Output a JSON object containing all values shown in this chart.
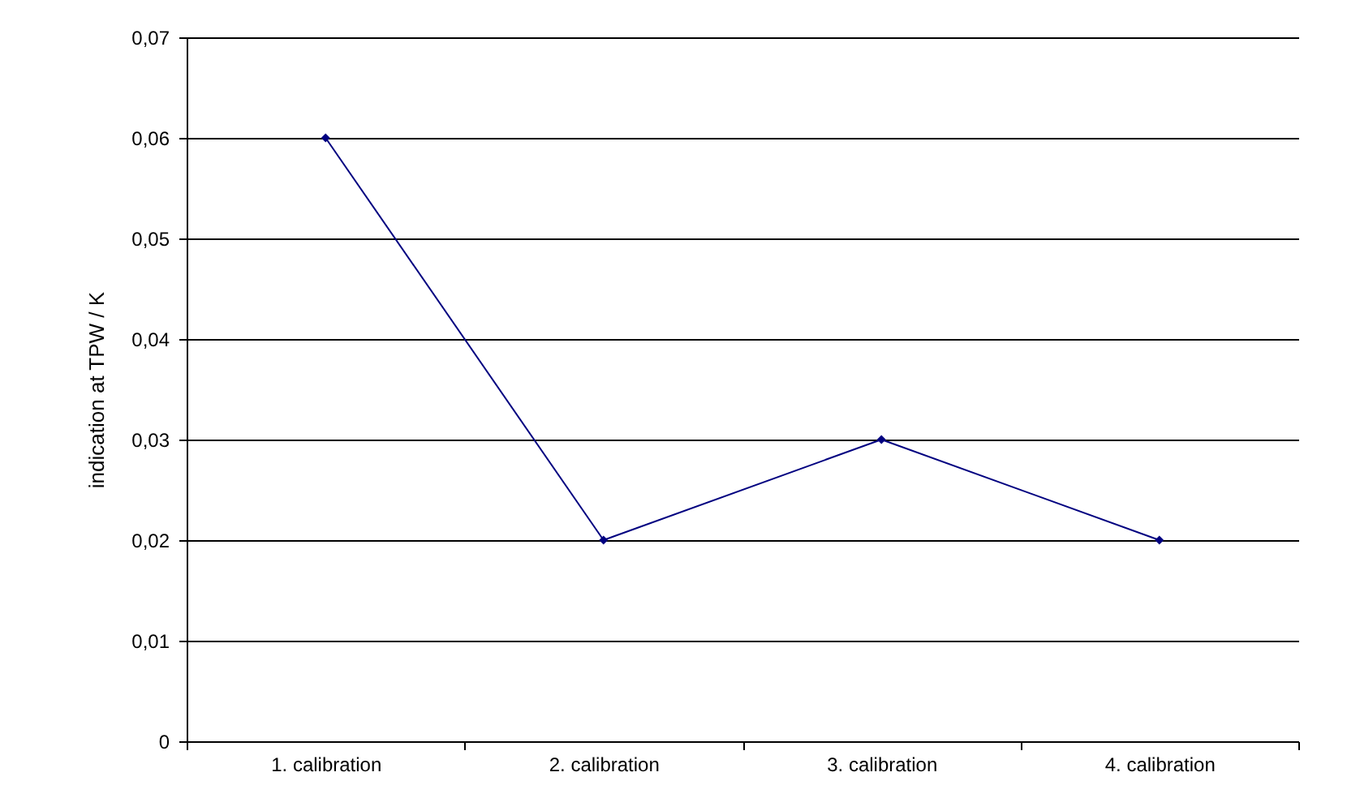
{
  "chart_data": {
    "type": "line",
    "ylabel": "indication at TPW / K",
    "categories": [
      "1. calibration",
      "2. calibration",
      "3. calibration",
      "4. calibration"
    ],
    "series": [
      {
        "color": "#000080",
        "values": [
          0.06,
          0.02,
          0.03,
          0.02
        ]
      }
    ],
    "ylim": [
      0,
      0.07
    ],
    "yticks": [
      0,
      {
        "value": 0.01,
        "label": "0,01"
      },
      {
        "value": 0.02,
        "label": "0,02"
      },
      {
        "value": 0.03,
        "label": "0,03"
      },
      {
        "value": 0.04,
        "label": "0,04"
      },
      {
        "value": 0.05,
        "label": "0,05"
      },
      {
        "value": 0.06,
        "label": "0,06"
      },
      {
        "value": 0.07,
        "label": "0,07"
      }
    ],
    "grid": "y",
    "marker": "diamond",
    "line_style": "solid",
    "legend": false
  }
}
